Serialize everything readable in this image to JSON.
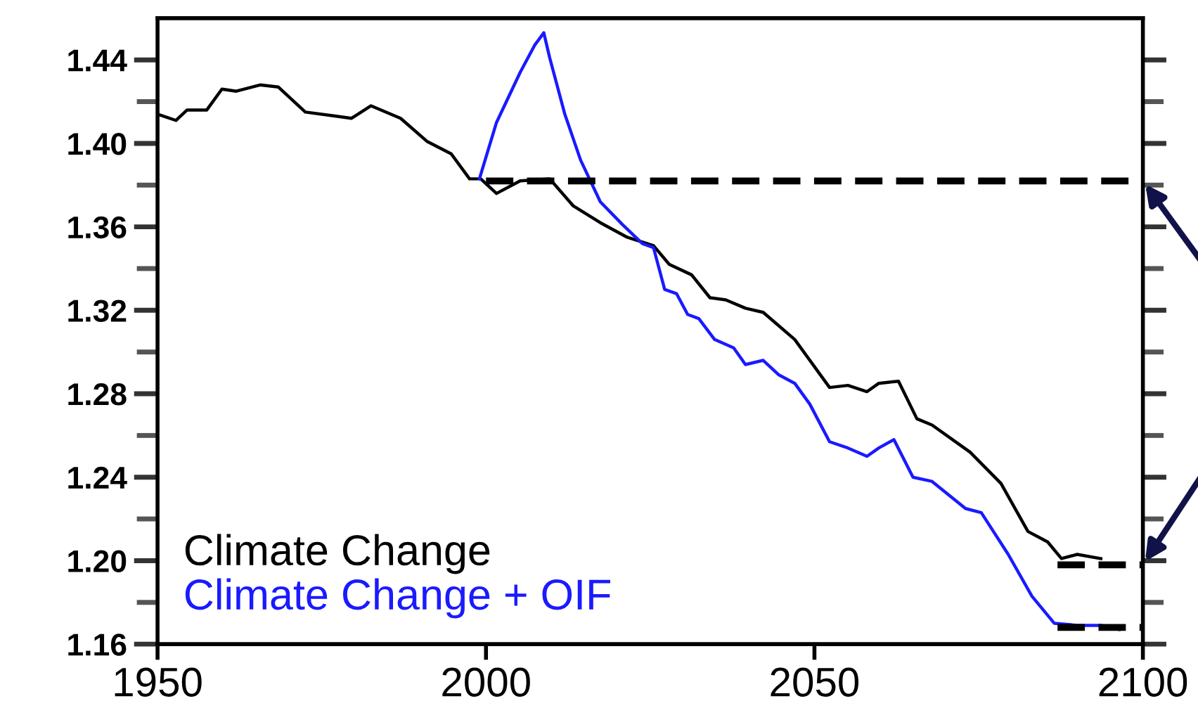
{
  "chart_data": {
    "type": "line",
    "xlim": [
      1950,
      2100
    ],
    "ylim": [
      1.16,
      1.46
    ],
    "xticks": [
      1950,
      2000,
      2050,
      2100
    ],
    "yticks": [
      {
        "value": 1.16,
        "label": "1.16"
      },
      {
        "value": 1.18,
        "label": null
      },
      {
        "value": 1.2,
        "label": "1.20"
      },
      {
        "value": 1.22,
        "label": null
      },
      {
        "value": 1.24,
        "label": "1.24"
      },
      {
        "value": 1.26,
        "label": null
      },
      {
        "value": 1.28,
        "label": "1.28"
      },
      {
        "value": 1.3,
        "label": null
      },
      {
        "value": 1.32,
        "label": "1.32"
      },
      {
        "value": 1.34,
        "label": null
      },
      {
        "value": 1.36,
        "label": "1.36"
      },
      {
        "value": 1.38,
        "label": null
      },
      {
        "value": 1.4,
        "label": "1.40"
      },
      {
        "value": 1.42,
        "label": null
      },
      {
        "value": 1.44,
        "label": "1.44"
      }
    ],
    "grid": false,
    "legend": "bottom left",
    "marker": "none",
    "series": [
      {
        "name": "Climate Change",
        "color": "#000000",
        "line_style": "solid",
        "x": [
          1950,
          1952.8,
          1954.5,
          1957.5,
          1959.8,
          1962,
          1965.6,
          1968.4,
          1972.5,
          1977.2,
          1979.5,
          1982.5,
          1987,
          1991,
          1994.7,
          1997.5,
          1999.2,
          2001.6,
          2005.2,
          2009.7,
          2013.3,
          2017.4,
          2021.5,
          2025.5,
          2027.9,
          2031.3,
          2034.1,
          2036.5,
          2039.5,
          2042.2,
          2047,
          2052.3,
          2055.1,
          2058,
          2059.8,
          2062.8,
          2065.6,
          2067.9,
          2073.7,
          2078.4,
          2082.5,
          2085.5,
          2087.6,
          2090,
          2093.6
        ],
        "values": [
          1.414,
          1.411,
          1.416,
          1.416,
          1.426,
          1.425,
          1.428,
          1.427,
          1.415,
          1.413,
          1.412,
          1.418,
          1.412,
          1.401,
          1.395,
          1.383,
          1.383,
          1.376,
          1.382,
          1.383,
          1.37,
          1.362,
          1.355,
          1.351,
          1.342,
          1.337,
          1.326,
          1.325,
          1.321,
          1.319,
          1.306,
          1.283,
          1.284,
          1.281,
          1.285,
          1.286,
          1.268,
          1.265,
          1.252,
          1.237,
          1.214,
          1.209,
          1.201,
          1.203,
          1.201
        ]
      },
      {
        "name": "Climate Change + OIF",
        "color": "#1a1aff",
        "line_style": "solid",
        "x": [
          1999,
          2001.6,
          2005.2,
          2007.4,
          2008.8,
          2009.7,
          2012,
          2014.4,
          2017.4,
          2020.8,
          2023.8,
          2025.5,
          2027.2,
          2029,
          2030.7,
          2032.4,
          2034.8,
          2037.7,
          2039.5,
          2042.2,
          2044.6,
          2047,
          2049.3,
          2052.3,
          2055.1,
          2058,
          2059.8,
          2062.1,
          2065,
          2067.9,
          2073,
          2075.4,
          2079.5,
          2083.1,
          2086.5,
          2090,
          2093.6,
          2096.4
        ],
        "values": [
          1.383,
          1.41,
          1.434,
          1.447,
          1.453,
          1.441,
          1.414,
          1.392,
          1.372,
          1.361,
          1.352,
          1.35,
          1.33,
          1.328,
          1.318,
          1.316,
          1.306,
          1.302,
          1.294,
          1.296,
          1.289,
          1.285,
          1.275,
          1.257,
          1.254,
          1.25,
          1.254,
          1.258,
          1.24,
          1.238,
          1.225,
          1.223,
          1.203,
          1.183,
          1.17,
          1.169,
          1.169,
          1.167
        ]
      },
      {
        "color": "#000000",
        "line_style": "dashed",
        "x": [
          2000,
          2100
        ],
        "values": [
          1.382,
          1.382
        ]
      },
      {
        "color": "#000000",
        "line_style": "dashed",
        "x": [
          2087,
          2100
        ],
        "values": [
          1.198,
          1.198
        ]
      },
      {
        "color": "#000000",
        "line_style": "dashed",
        "x": [
          2087,
          2100
        ],
        "values": [
          1.168,
          1.168
        ]
      }
    ]
  }
}
